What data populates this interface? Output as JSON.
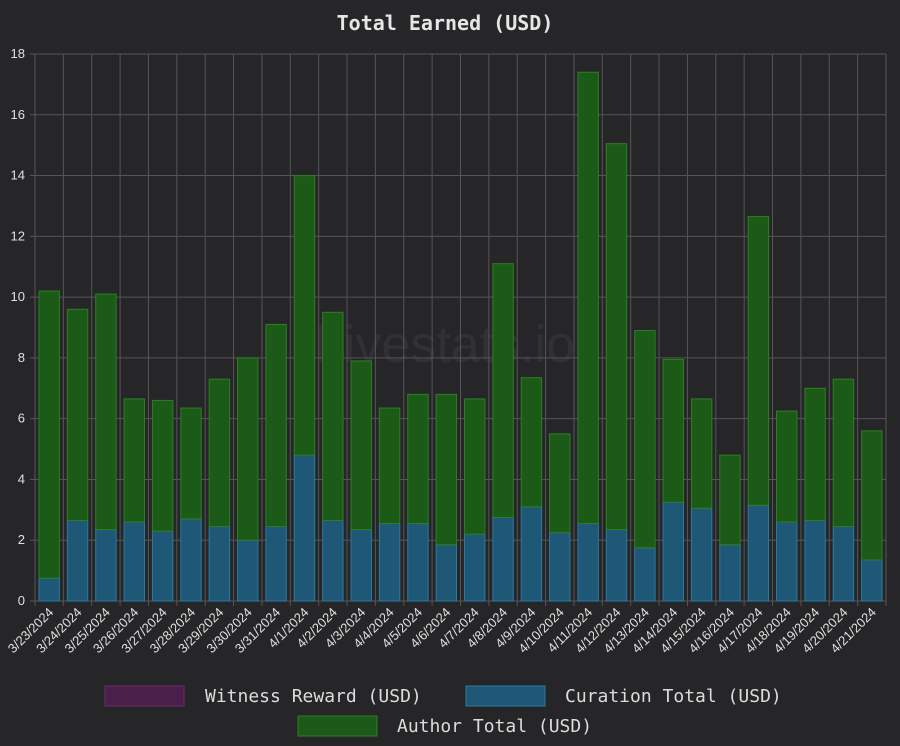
{
  "watermark": "hivestats.io",
  "chart_data": {
    "type": "bar",
    "stacked": true,
    "title": "Total Earned (USD)",
    "categories": [
      "3/23/2024",
      "3/24/2024",
      "3/25/2024",
      "3/26/2024",
      "3/27/2024",
      "3/28/2024",
      "3/29/2024",
      "3/30/2024",
      "3/31/2024",
      "4/1/2024",
      "4/2/2024",
      "4/3/2024",
      "4/4/2024",
      "4/5/2024",
      "4/6/2024",
      "4/7/2024",
      "4/8/2024",
      "4/9/2024",
      "4/10/2024",
      "4/11/2024",
      "4/12/2024",
      "4/13/2024",
      "4/14/2024",
      "4/15/2024",
      "4/16/2024",
      "4/17/2024",
      "4/18/2024",
      "4/19/2024",
      "4/20/2024",
      "4/21/2024"
    ],
    "series": [
      {
        "name": "Witness Reward (USD)",
        "color": "#4a1f4a",
        "values": [
          0,
          0,
          0,
          0,
          0,
          0,
          0,
          0,
          0,
          0,
          0,
          0,
          0,
          0,
          0,
          0,
          0,
          0,
          0,
          0,
          0,
          0,
          0,
          0,
          0,
          0,
          0,
          0,
          0,
          0
        ]
      },
      {
        "name": "Curation Total (USD)",
        "color": "#1e5876",
        "values": [
          0.75,
          2.65,
          2.35,
          2.6,
          2.3,
          2.7,
          2.45,
          2.0,
          2.45,
          4.8,
          2.65,
          2.35,
          2.55,
          2.55,
          1.85,
          2.2,
          2.75,
          3.1,
          2.25,
          2.55,
          2.35,
          1.75,
          3.25,
          3.05,
          1.85,
          3.15,
          2.6,
          2.65,
          2.45,
          1.35
        ]
      },
      {
        "name": "Author Total (USD)",
        "color": "#1c5a18",
        "values": [
          9.45,
          6.95,
          7.75,
          4.05,
          4.3,
          3.65,
          4.85,
          6.0,
          6.65,
          9.2,
          6.85,
          5.55,
          3.8,
          4.25,
          4.95,
          4.45,
          8.35,
          4.25,
          3.25,
          14.85,
          12.7,
          7.15,
          4.7,
          3.6,
          2.95,
          9.5,
          3.65,
          4.35,
          4.85,
          4.25
        ]
      }
    ],
    "ylim": [
      0,
      18
    ],
    "yticks": [
      "0",
      "2",
      "4",
      "6",
      "8",
      "10",
      "12",
      "14",
      "16",
      "18"
    ],
    "grid": true,
    "legend_position": "bottom"
  }
}
